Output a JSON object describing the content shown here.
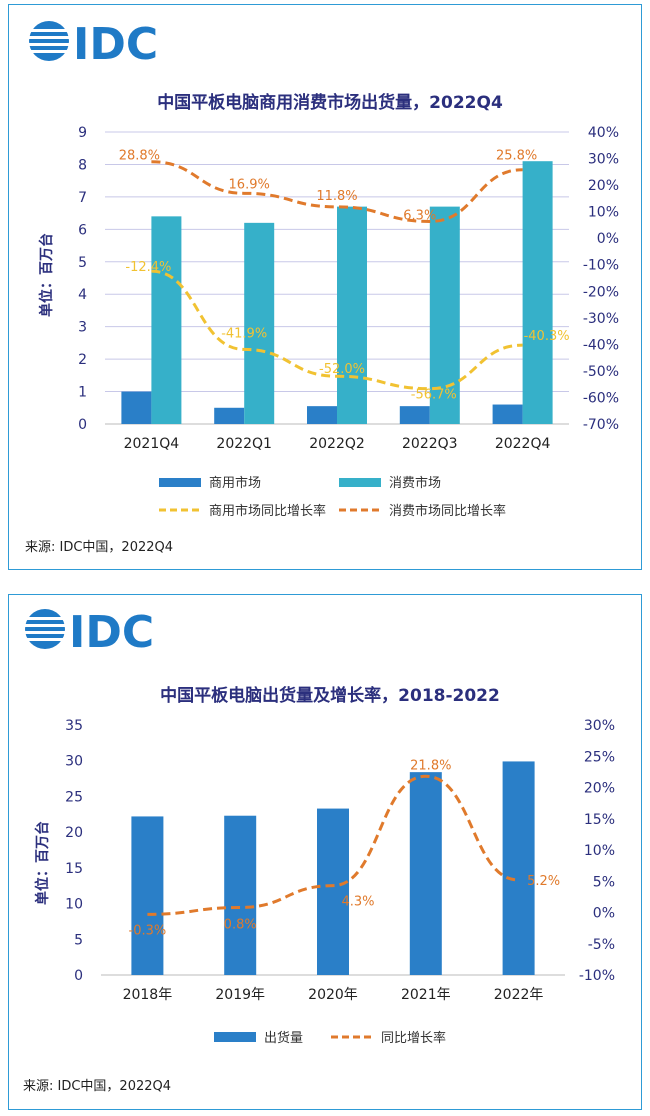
{
  "colors": {
    "brand_blue": "#1f7ac6",
    "bar_dark": "#2a7fc8",
    "bar_light": "#36b0c9",
    "line_yellow": "#f1c232",
    "line_orange": "#e07a2c",
    "title": "#2b2f7d",
    "grid": "#c8c8e8"
  },
  "panels": [
    {
      "logo_text": "IDC",
      "source": "来源: IDC中国，2022Q4",
      "chart_data": {
        "type": "bar",
        "title": "中国平板电脑商用消费市场出货量，2022Q4",
        "ylabel": "单位：百万台",
        "categories": [
          "2021Q4",
          "2022Q1",
          "2022Q2",
          "2022Q3",
          "2022Q4"
        ],
        "ylim": [
          0,
          9
        ],
        "yticks": [
          "0",
          "1",
          "2",
          "3",
          "4",
          "5",
          "6",
          "7",
          "8",
          "9"
        ],
        "y2lim": [
          -70,
          40
        ],
        "y2ticks": [
          "-70%",
          "-60%",
          "-50%",
          "-40%",
          "-30%",
          "-20%",
          "-10%",
          "0%",
          "10%",
          "20%",
          "30%",
          "40%"
        ],
        "grid": true,
        "legend_position": "bottom",
        "series": [
          {
            "name": "商用市场",
            "kind": "bar",
            "values": [
              1.0,
              0.5,
              0.55,
              0.55,
              0.6
            ]
          },
          {
            "name": "消费市场",
            "kind": "bar",
            "values": [
              6.4,
              6.2,
              6.7,
              6.7,
              8.1
            ]
          },
          {
            "name": "商用市场同比增长率",
            "kind": "line",
            "axis": "right",
            "values": [
              -12.4,
              -41.9,
              -52.0,
              -56.7,
              -40.3
            ],
            "labels": [
              "-12.4%",
              "-41.9%",
              "-52.0%",
              "-56.7%",
              "-40.3%"
            ]
          },
          {
            "name": "消费市场同比增长率",
            "kind": "line",
            "axis": "right",
            "values": [
              28.8,
              16.9,
              11.8,
              6.3,
              25.8
            ],
            "labels": [
              "28.8%",
              "16.9%",
              "11.8%",
              "6.3%",
              "25.8%"
            ]
          }
        ]
      }
    },
    {
      "logo_text": "IDC",
      "source": "来源: IDC中国，2022Q4",
      "chart_data": {
        "type": "bar",
        "title": "中国平板电脑出货量及增长率，2018-2022",
        "ylabel": "单位：百万台",
        "categories": [
          "2018年",
          "2019年",
          "2020年",
          "2021年",
          "2022年"
        ],
        "ylim": [
          0,
          35
        ],
        "yticks": [
          "0",
          "5",
          "10",
          "15",
          "20",
          "25",
          "30",
          "35"
        ],
        "y2lim": [
          -10,
          30
        ],
        "y2ticks": [
          "-10%",
          "-5%",
          "0%",
          "5%",
          "10%",
          "15%",
          "20%",
          "25%",
          "30%"
        ],
        "grid": false,
        "legend_position": "bottom",
        "series": [
          {
            "name": "出货量",
            "kind": "bar",
            "values": [
              22.2,
              22.3,
              23.3,
              28.4,
              29.9
            ]
          },
          {
            "name": "同比增长率",
            "kind": "line",
            "axis": "right",
            "values": [
              -0.3,
              0.8,
              4.3,
              21.8,
              5.2
            ],
            "labels": [
              "-0.3%",
              "0.8%",
              "4.3%",
              "21.8%",
              "5.2%"
            ]
          }
        ]
      }
    }
  ]
}
